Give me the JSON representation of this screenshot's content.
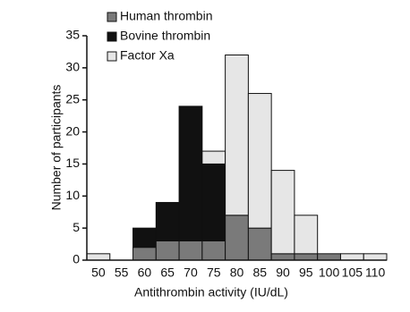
{
  "chart_data": {
    "type": "bar",
    "stacked": true,
    "xlabel": "Antithrombin activity (IU/dL)",
    "ylabel": "Number of participants",
    "categories": [
      "50",
      "55",
      "60",
      "65",
      "70",
      "75",
      "80",
      "85",
      "90",
      "95",
      "100",
      "105",
      "110"
    ],
    "series": [
      {
        "name": "Human thrombin",
        "color": "#7a7a7a",
        "values": [
          0,
          0,
          2,
          3,
          3,
          3,
          7,
          5,
          1,
          1,
          1,
          0,
          0
        ]
      },
      {
        "name": "Bovine thrombin",
        "color": "#111111",
        "values": [
          0,
          0,
          3,
          6,
          21,
          12,
          0,
          0,
          0,
          0,
          0,
          0,
          0
        ]
      },
      {
        "name": "Factor Xa",
        "color": "#e6e6e6",
        "values": [
          1,
          0,
          0,
          0,
          0,
          2,
          25,
          21,
          13,
          6,
          0,
          1,
          1
        ]
      }
    ],
    "ylim": [
      0,
      35
    ],
    "yticks": [
      0,
      5,
      10,
      15,
      20,
      25,
      30,
      35
    ],
    "legend": "top-left"
  }
}
